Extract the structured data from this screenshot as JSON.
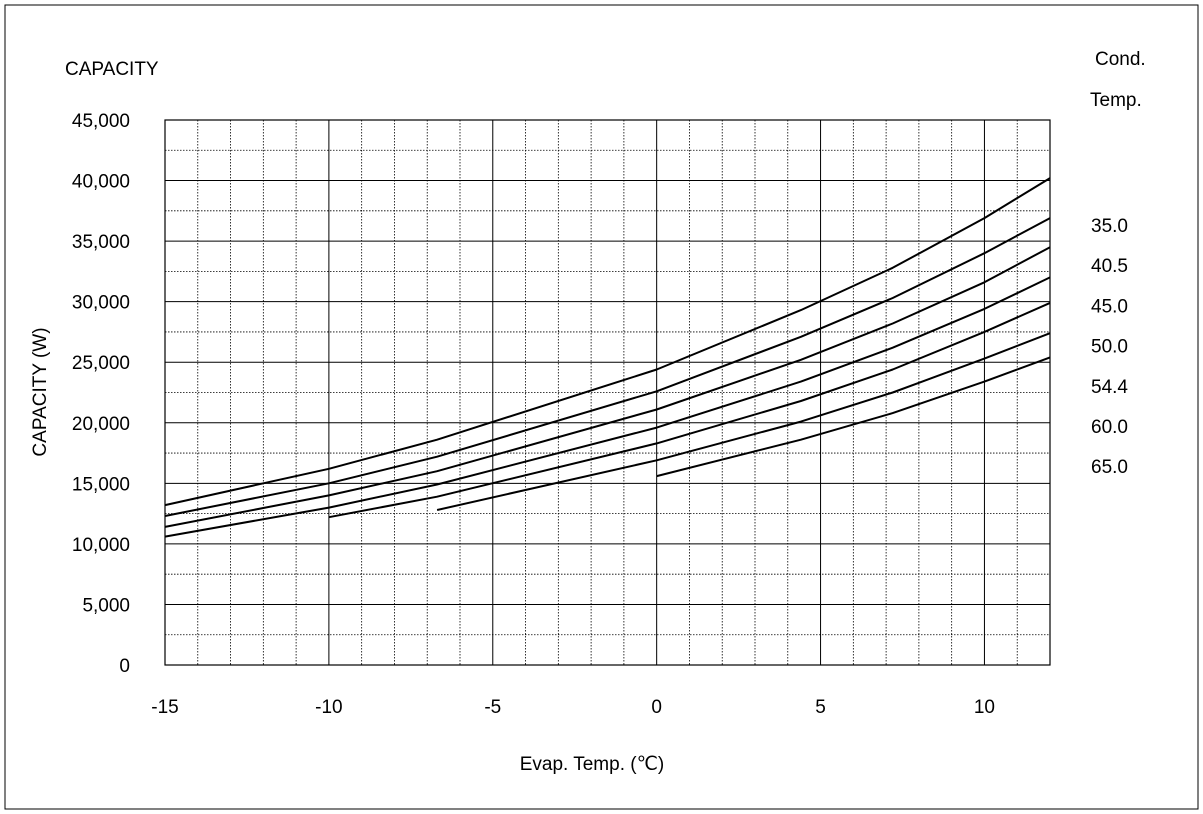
{
  "chart_data": {
    "type": "line",
    "title": "CAPACITY",
    "xlabel": "Evap. Temp.  (℃)",
    "ylabel": "CAPACITY (W)",
    "xlim": [
      -15,
      12
    ],
    "ylim": [
      0,
      45000
    ],
    "x_ticks": [
      -15,
      -10,
      -5,
      0,
      5,
      10
    ],
    "x_tick_labels": [
      "-15",
      "-10",
      "-5",
      "0",
      "5",
      "10"
    ],
    "y_ticks": [
      0,
      5000,
      10000,
      15000,
      20000,
      25000,
      30000,
      35000,
      40000,
      45000
    ],
    "y_tick_labels": [
      "0",
      "5,000",
      "10,000",
      "15,000",
      "20,000",
      "25,000",
      "30,000",
      "35,000",
      "40,000",
      "45,000"
    ],
    "grid": true,
    "minor_grid_step_x": 1,
    "minor_grid_step_y": 2500,
    "legend_title": [
      "Cond.",
      "Temp."
    ],
    "legend_position": "right",
    "series": [
      {
        "name": "35.0",
        "points": [
          [
            -15,
            13200
          ],
          [
            -10,
            16200
          ],
          [
            -6.7,
            18600
          ],
          [
            0,
            24400
          ],
          [
            4.4,
            29300
          ],
          [
            7.2,
            32800
          ],
          [
            10,
            36900
          ],
          [
            12,
            40200
          ]
        ]
      },
      {
        "name": "40.5",
        "points": [
          [
            -15,
            12300
          ],
          [
            -10,
            15000
          ],
          [
            -6.7,
            17200
          ],
          [
            0,
            22600
          ],
          [
            4.4,
            27100
          ],
          [
            7.2,
            30300
          ],
          [
            10,
            34000
          ],
          [
            12,
            36900
          ]
        ]
      },
      {
        "name": "45.0",
        "points": [
          [
            -15,
            11400
          ],
          [
            -10,
            14000
          ],
          [
            -6.7,
            16000
          ],
          [
            0,
            21100
          ],
          [
            4.4,
            25200
          ],
          [
            7.2,
            28200
          ],
          [
            10,
            31600
          ],
          [
            12,
            34500
          ]
        ]
      },
      {
        "name": "50.0",
        "points": [
          [
            -15,
            10600
          ],
          [
            -10,
            13000
          ],
          [
            -6.7,
            14900
          ],
          [
            0,
            19600
          ],
          [
            4.4,
            23400
          ],
          [
            7.2,
            26200
          ],
          [
            10,
            29400
          ],
          [
            12,
            32000
          ]
        ]
      },
      {
        "name": "54.4",
        "points": [
          [
            -10,
            12200
          ],
          [
            -6.7,
            13900
          ],
          [
            0,
            18300
          ],
          [
            4.4,
            21800
          ],
          [
            7.2,
            24400
          ],
          [
            10,
            27500
          ],
          [
            12,
            29900
          ]
        ]
      },
      {
        "name": "60.0",
        "points": [
          [
            -6.7,
            12800
          ],
          [
            0,
            16900
          ],
          [
            4.4,
            20100
          ],
          [
            7.2,
            22500
          ],
          [
            10,
            25300
          ],
          [
            12,
            27400
          ]
        ]
      },
      {
        "name": "65.0",
        "points": [
          [
            0,
            15600
          ],
          [
            4.4,
            18600
          ],
          [
            7.2,
            20800
          ],
          [
            10,
            23400
          ],
          [
            12,
            25400
          ]
        ]
      }
    ]
  }
}
